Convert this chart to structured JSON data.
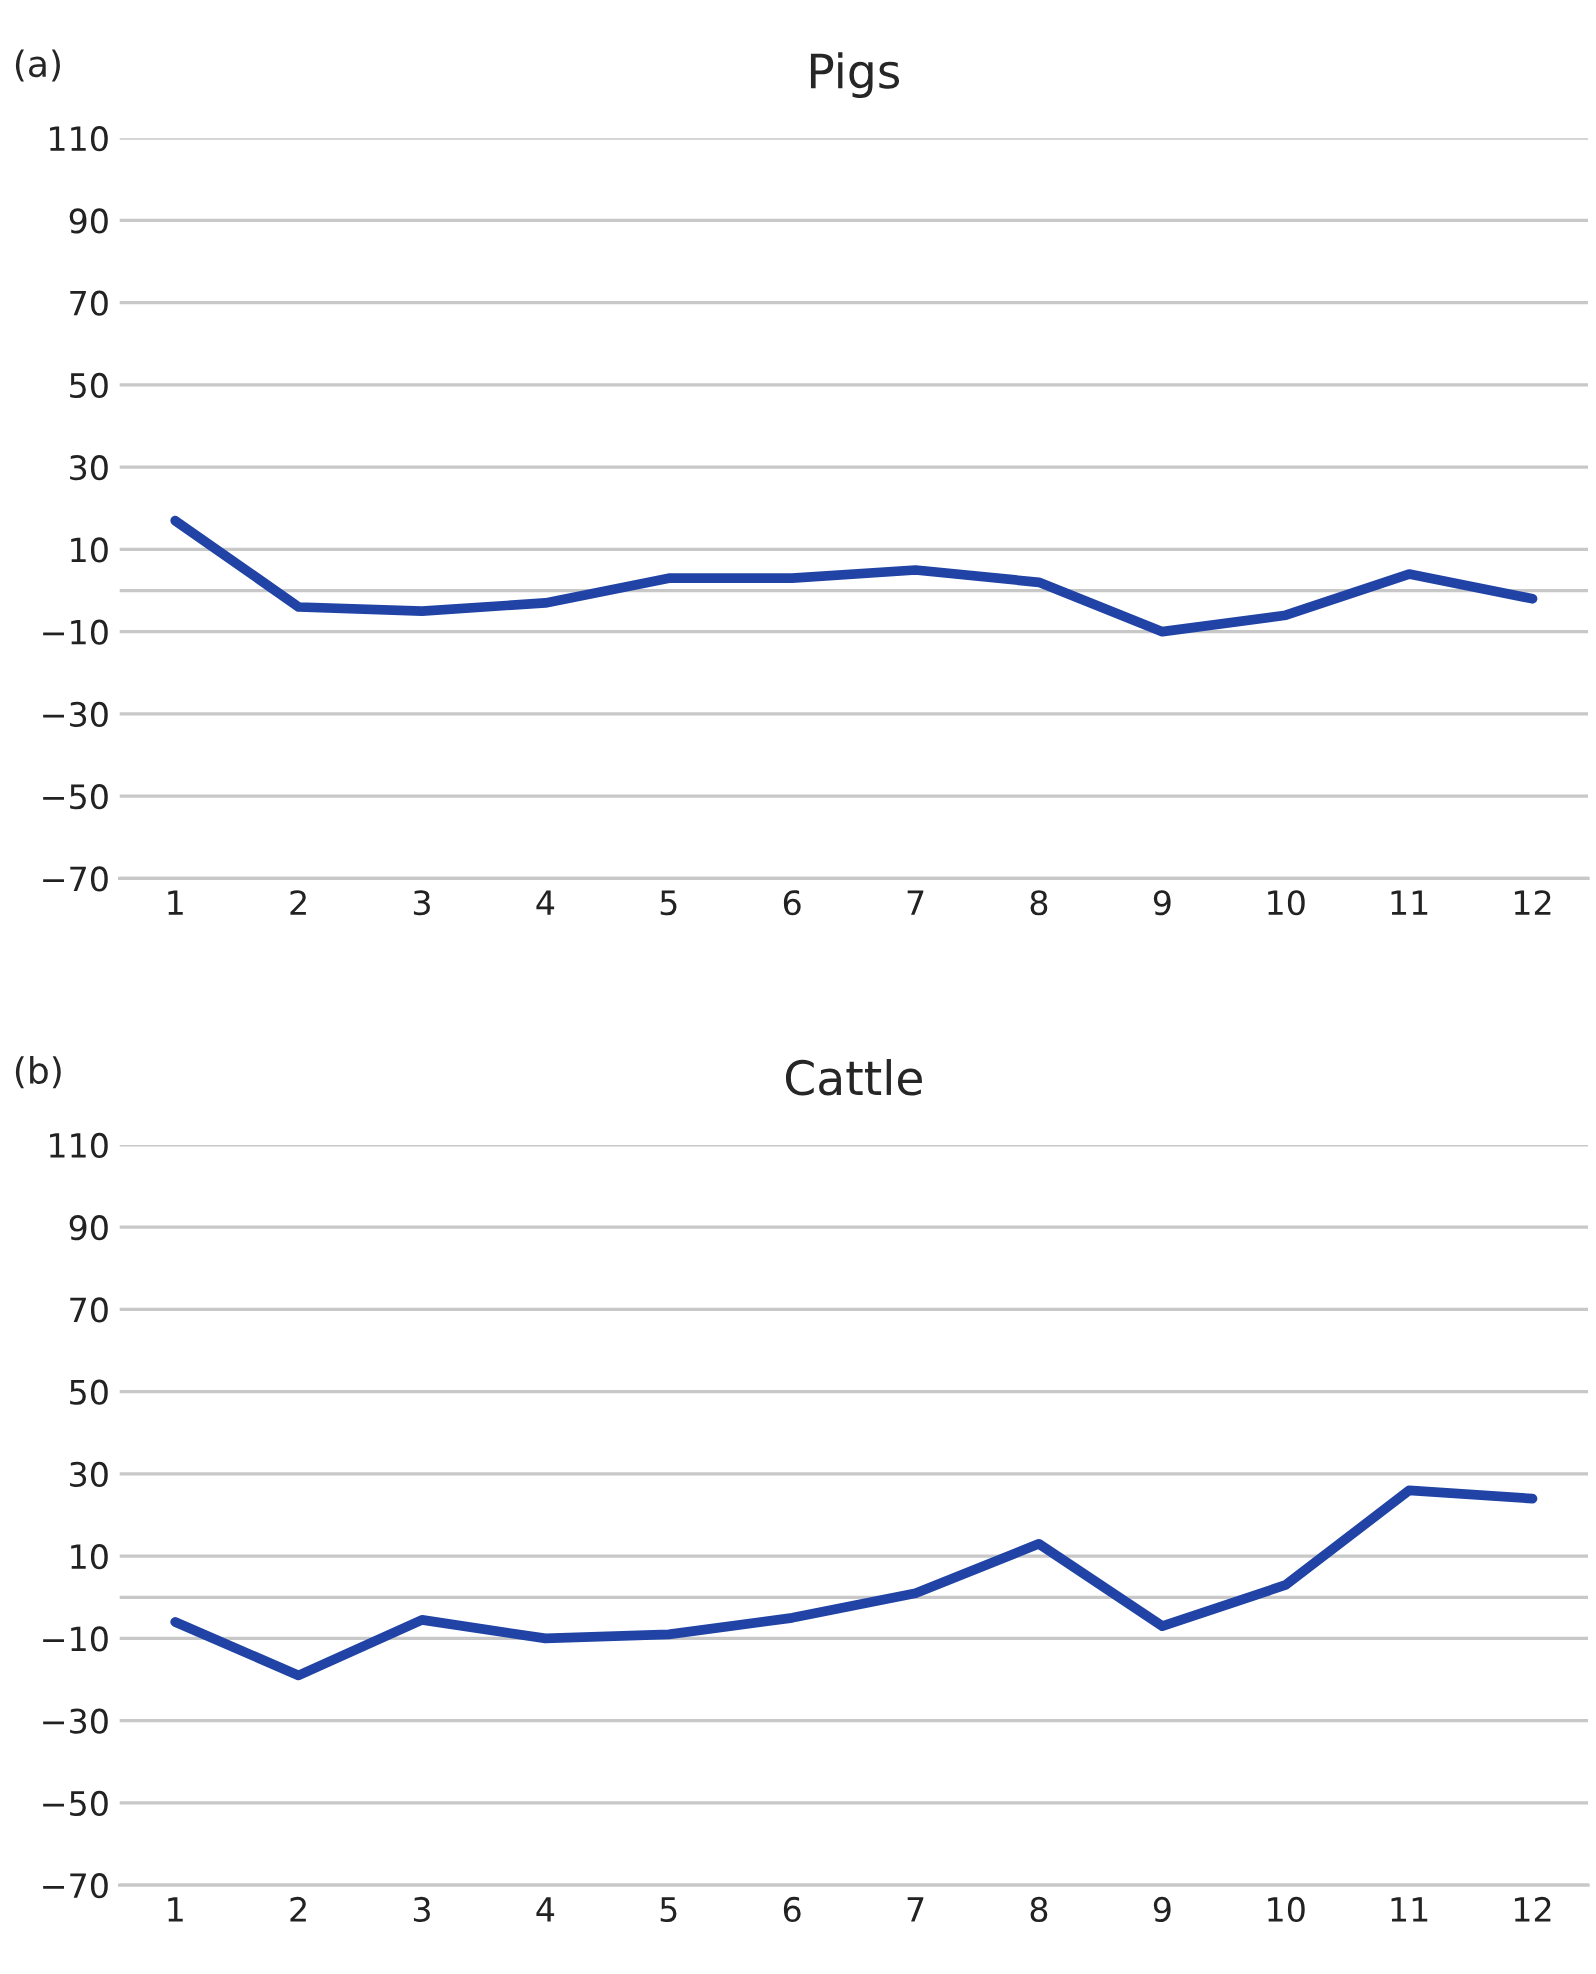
{
  "chart_data": [
    {
      "type": "line",
      "title": "Pigs",
      "annotations": [
        "(a)"
      ],
      "categories": [
        "1",
        "2",
        "3",
        "4",
        "5",
        "6",
        "7",
        "8",
        "9",
        "10",
        "11",
        "12"
      ],
      "series": [
        {
          "color": "#2043a5",
          "values": [
            17,
            -4,
            -5,
            -3,
            3,
            3,
            5,
            2,
            -10,
            -6,
            4,
            -2
          ]
        }
      ],
      "ylim": [
        -70,
        110
      ],
      "yticks": [
        -70,
        -50,
        -30,
        -10,
        10,
        30,
        50,
        70,
        90,
        110
      ],
      "grid": "y",
      "legend": false,
      "marker": "none",
      "line_style": "solid",
      "ref_lines": [
        {
          "axis": "y",
          "value": 0,
          "color": "#c8c8c8"
        }
      ]
    },
    {
      "type": "line",
      "title": "Cattle",
      "annotations": [
        "(b)"
      ],
      "categories": [
        "1",
        "2",
        "3",
        "4",
        "5",
        "6",
        "7",
        "8",
        "9",
        "10",
        "11",
        "12"
      ],
      "series": [
        {
          "color": "#2043a5",
          "values": [
            -6,
            -19,
            -5.5,
            -10,
            -9,
            -5,
            1,
            13,
            -7,
            3,
            26,
            24
          ]
        }
      ],
      "ylim": [
        -70,
        110
      ],
      "yticks": [
        -70,
        -50,
        -30,
        -10,
        10,
        30,
        50,
        70,
        90,
        110
      ],
      "grid": "y",
      "legend": false,
      "marker": "none",
      "line_style": "solid",
      "ref_lines": [
        {
          "axis": "y",
          "value": 0,
          "color": "#c8c8c8"
        }
      ]
    }
  ]
}
